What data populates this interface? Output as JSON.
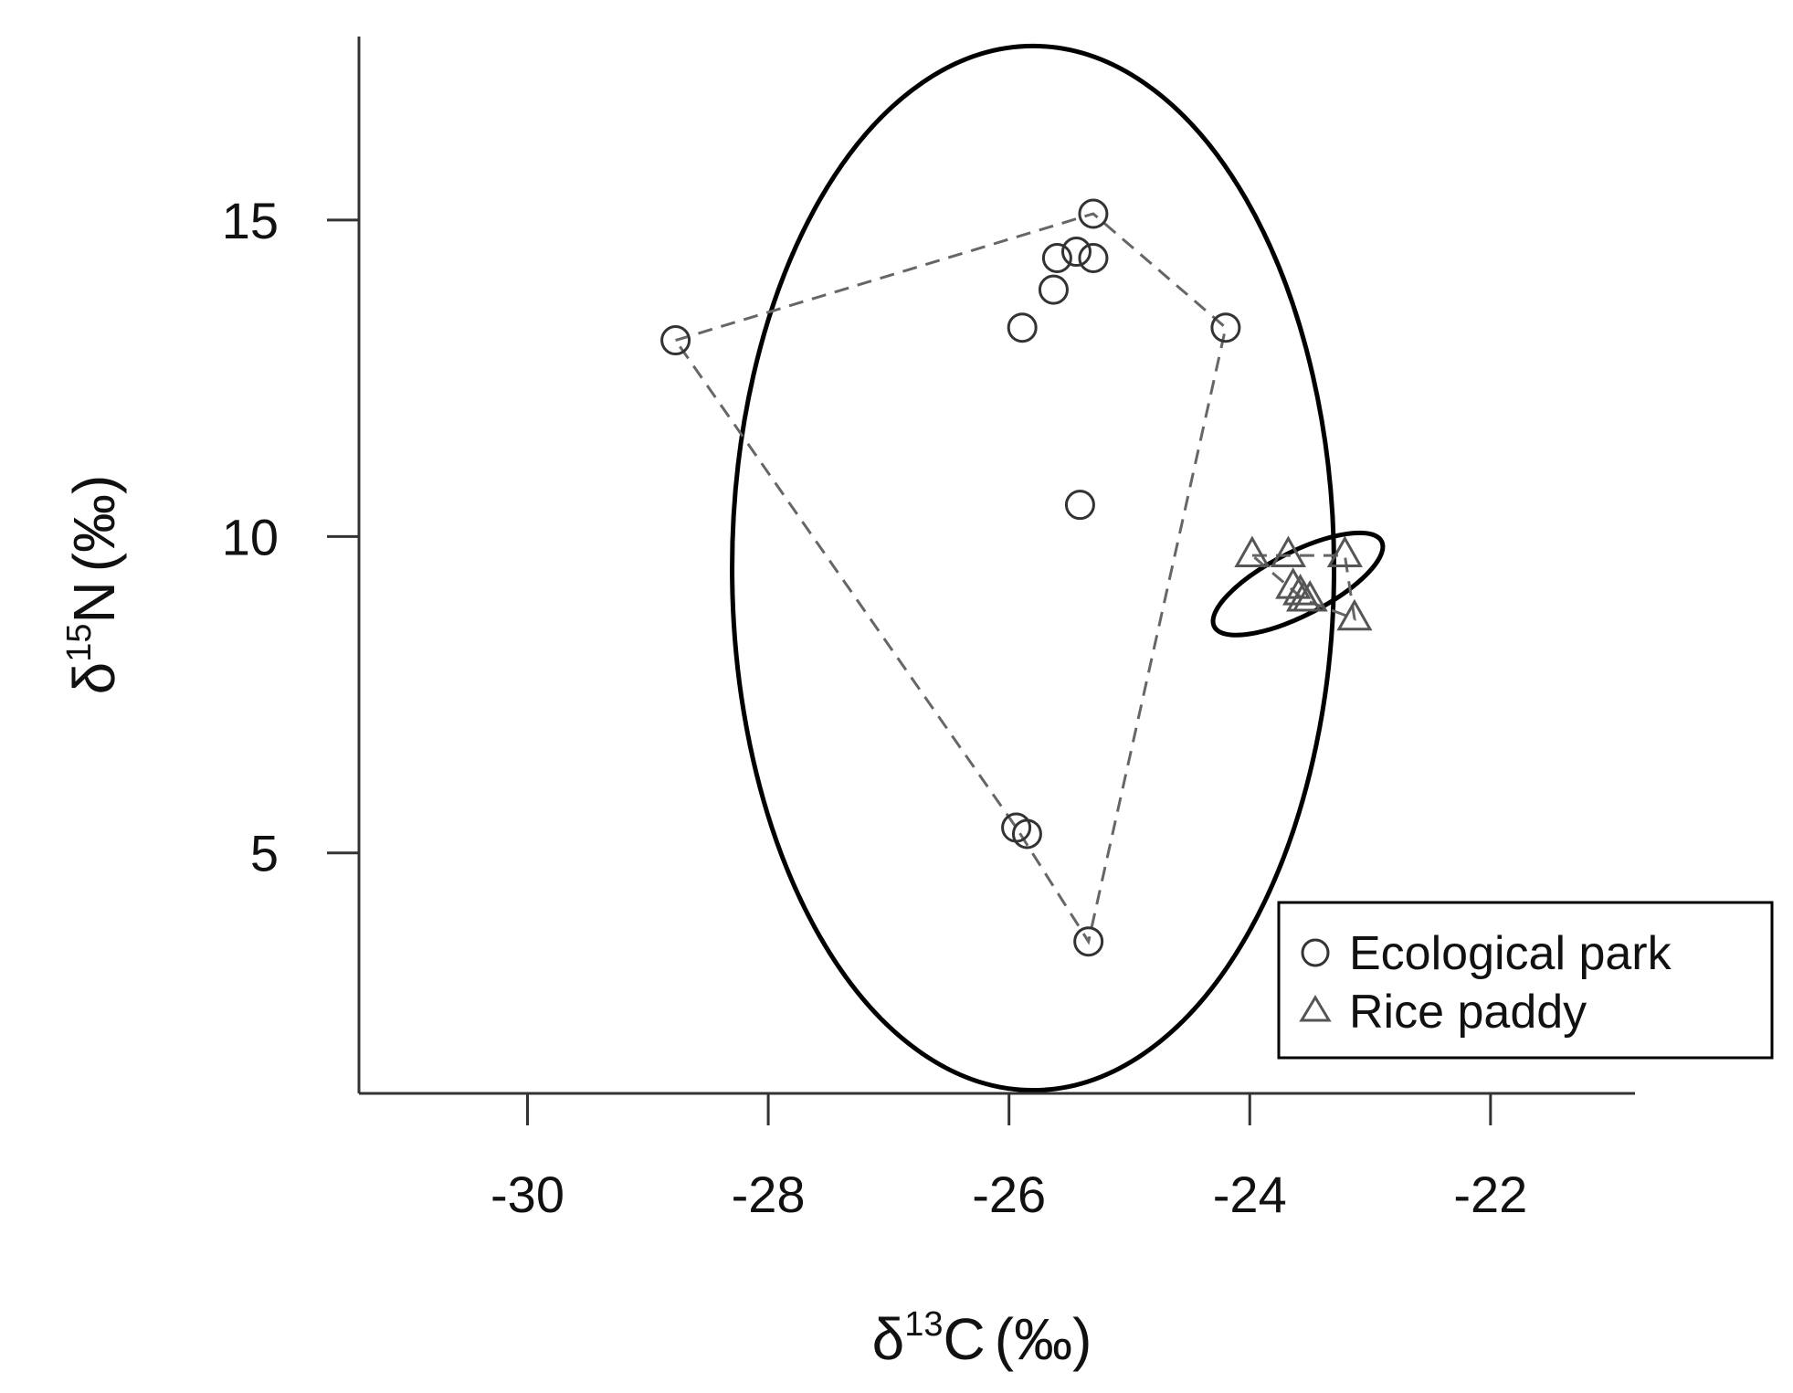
{
  "chart_data": {
    "type": "scatter",
    "title": "",
    "xlabel": {
      "prefix": "δ",
      "sup": "13",
      "main": "C",
      "unit": "(‰)"
    },
    "ylabel": {
      "prefix": "δ",
      "sup": "15",
      "main": "N",
      "unit": "(‰)"
    },
    "xlim": [
      -31.4,
      -20.8
    ],
    "ylim": [
      1.2,
      17.9
    ],
    "xticks": [
      -30,
      -28,
      -26,
      -24,
      -22
    ],
    "xtick_labels": [
      "-30",
      "-28",
      "-26",
      "-24",
      "-22"
    ],
    "yticks": [
      5,
      10,
      15
    ],
    "ytick_labels": [
      "5",
      "10",
      "15"
    ],
    "grid": false,
    "legend_position": "bottom-right",
    "series": [
      {
        "name": "Ecological park",
        "marker": "circle",
        "points": [
          {
            "x": -28.77,
            "y": 13.1
          },
          {
            "x": -25.89,
            "y": 13.3
          },
          {
            "x": -25.63,
            "y": 13.9
          },
          {
            "x": -25.6,
            "y": 14.4
          },
          {
            "x": -25.44,
            "y": 14.5
          },
          {
            "x": -25.3,
            "y": 15.1
          },
          {
            "x": -25.3,
            "y": 14.4
          },
          {
            "x": -24.2,
            "y": 13.3
          },
          {
            "x": -25.41,
            "y": 10.5
          },
          {
            "x": -25.94,
            "y": 5.4
          },
          {
            "x": -25.85,
            "y": 5.3
          },
          {
            "x": -25.34,
            "y": 3.6
          }
        ],
        "hull": [
          {
            "x": -28.77,
            "y": 13.1
          },
          {
            "x": -25.3,
            "y": 15.1
          },
          {
            "x": -24.2,
            "y": 13.3
          },
          {
            "x": -25.34,
            "y": 3.6
          },
          {
            "x": -25.94,
            "y": 5.4
          }
        ],
        "ellipse": {
          "cx": -25.8,
          "cy": 9.5,
          "rx": 2.5,
          "ry": 8.25,
          "angle_deg": 0
        }
      },
      {
        "name": "Rice paddy",
        "marker": "triangle",
        "points": [
          {
            "x": -23.98,
            "y": 9.7
          },
          {
            "x": -23.68,
            "y": 9.7
          },
          {
            "x": -23.21,
            "y": 9.7
          },
          {
            "x": -23.64,
            "y": 9.2
          },
          {
            "x": -23.58,
            "y": 9.1
          },
          {
            "x": -23.55,
            "y": 9.0
          },
          {
            "x": -23.5,
            "y": 9.0
          },
          {
            "x": -23.13,
            "y": 8.7
          }
        ],
        "hull": [
          {
            "x": -23.98,
            "y": 9.7
          },
          {
            "x": -23.21,
            "y": 9.7
          },
          {
            "x": -23.13,
            "y": 8.7
          },
          {
            "x": -23.55,
            "y": 9.0
          }
        ],
        "ellipse": {
          "cx": -23.6,
          "cy": 9.25,
          "rx": 0.78,
          "ry": 0.5,
          "angle_deg": 27
        }
      }
    ]
  },
  "colors": {
    "axis": "#333333",
    "ellipse": "#000000",
    "hull": "#666666",
    "marker_circle": "#333333",
    "marker_triangle": "#555555",
    "legend_border": "#000000",
    "text": "#111111"
  }
}
